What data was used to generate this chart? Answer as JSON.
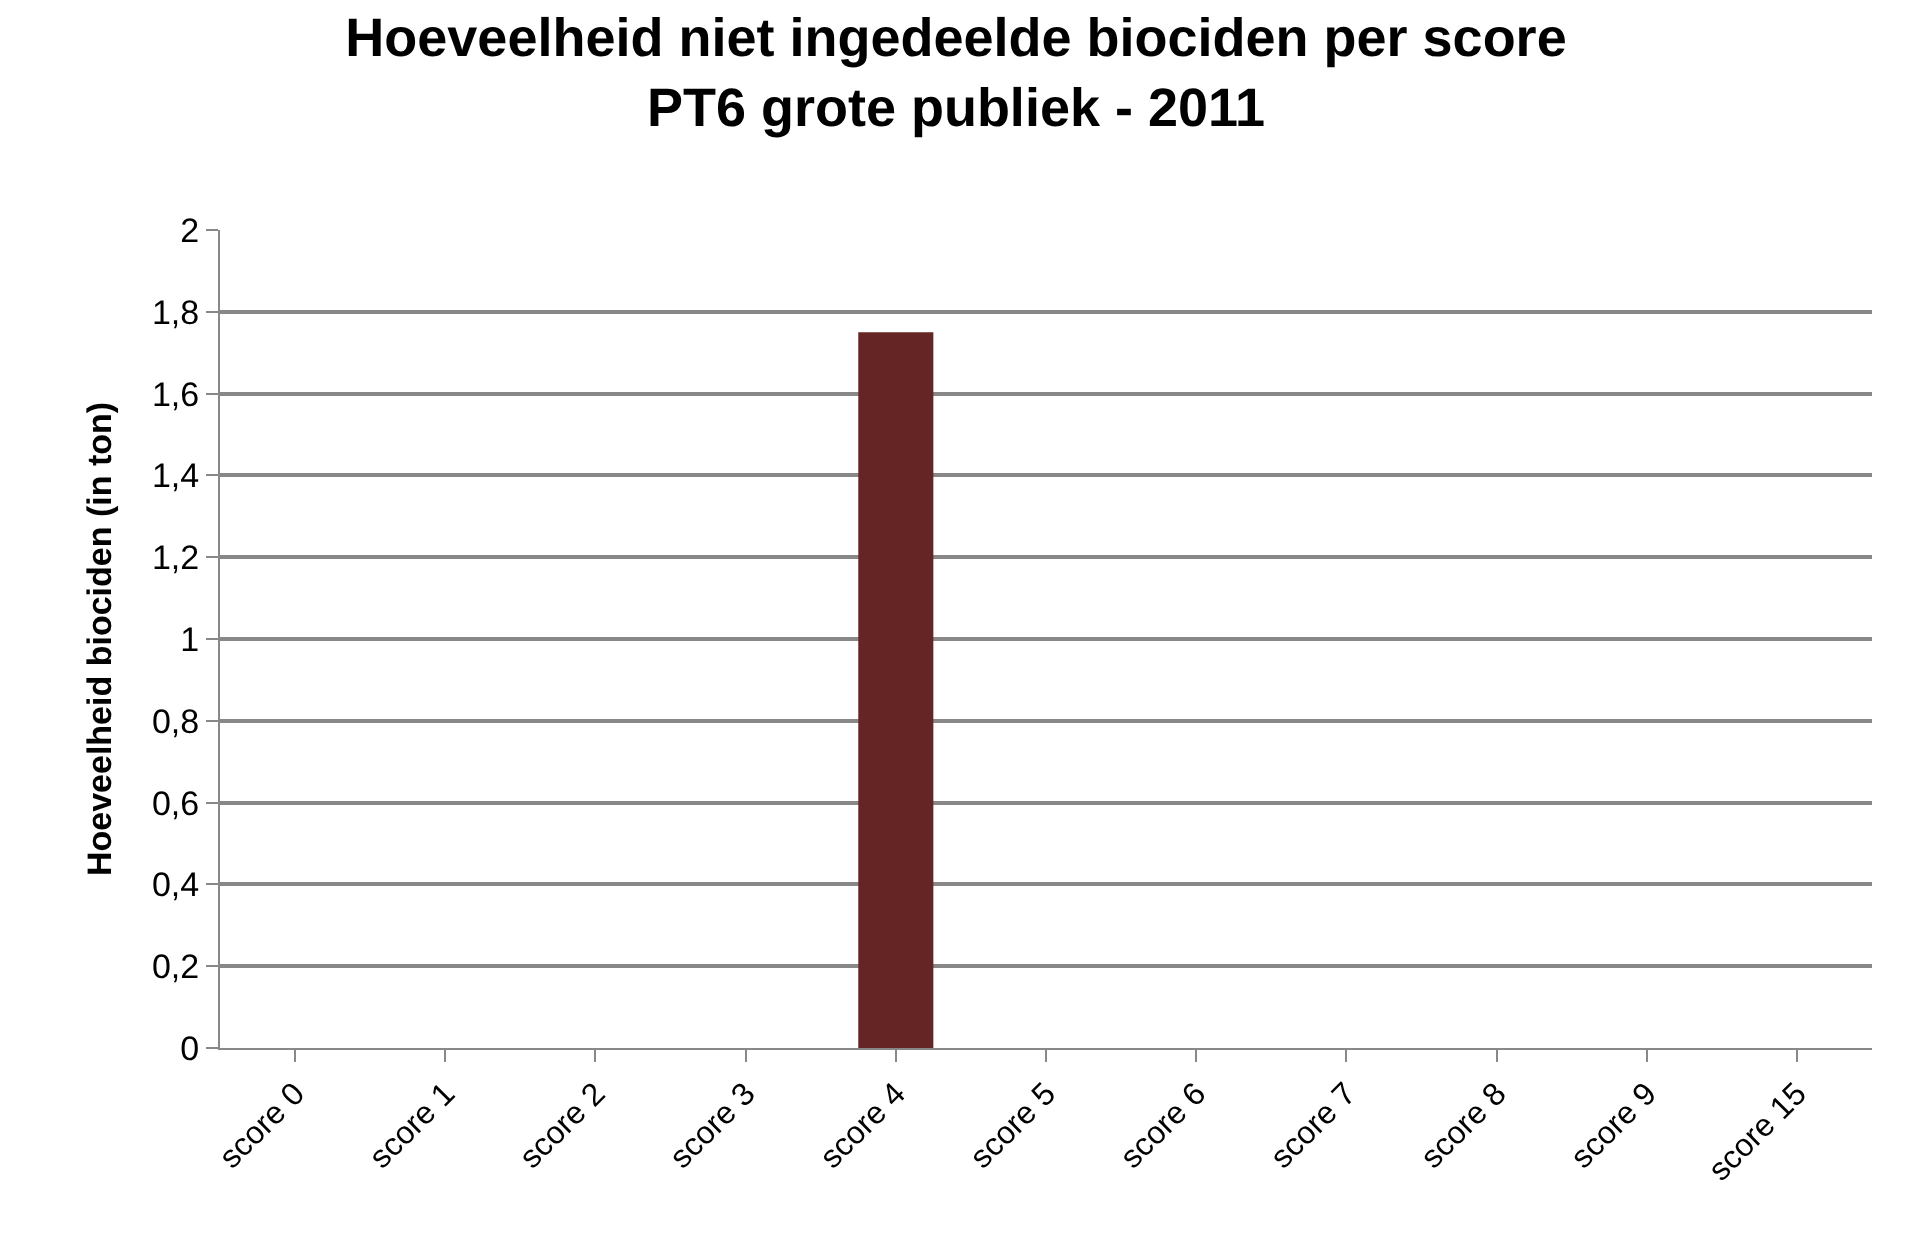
{
  "chart_data": {
    "type": "bar",
    "title": "Hoeveelheid niet ingedeelde biociden per score\nPT6 grote publiek - 2011",
    "ylabel": "Hoeveelheid biociden (in ton)",
    "categories": [
      "score 0",
      "score 1",
      "score 2",
      "score 3",
      "score 4",
      "score 5",
      "score 6",
      "score 7",
      "score 8",
      "score 9",
      "score 15"
    ],
    "values": [
      0,
      0,
      0,
      0,
      1.75,
      0,
      0,
      0,
      0,
      0,
      0
    ],
    "color": "#662525",
    "ylim": [
      0,
      2
    ],
    "yticks": [
      0,
      {
        "value": 0.2,
        "label": "0,2"
      },
      {
        "value": 0.4,
        "label": "0,4"
      },
      {
        "value": 0.6,
        "label": "0,6"
      },
      {
        "value": 0.8,
        "label": "0,8"
      },
      1,
      {
        "value": 1.2,
        "label": "1,2"
      },
      {
        "value": 1.4,
        "label": "1,4"
      },
      {
        "value": 1.6,
        "label": "1,6"
      },
      {
        "value": 1.8,
        "label": "1,8"
      },
      2
    ],
    "grid": "y",
    "legend": false
  }
}
